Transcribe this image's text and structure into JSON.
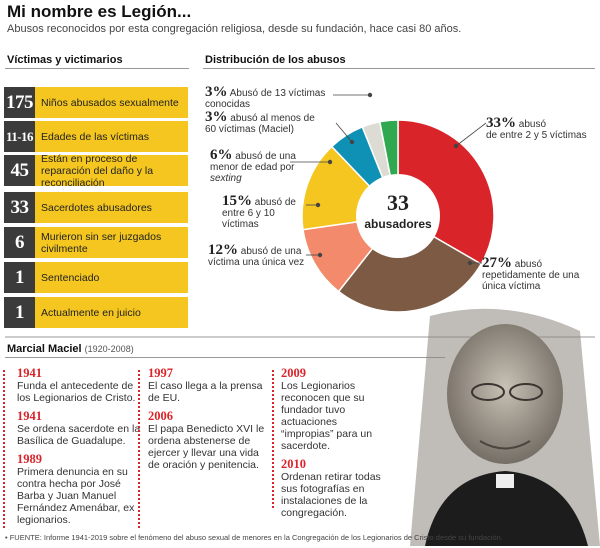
{
  "header": {
    "title": "Mi nombre es Legión...",
    "subtitle": "Abusos reconocidos por esta congregación religiosa, desde su fundación, hace casi 80 años."
  },
  "victims": {
    "title": "Víctimas y victimarios",
    "items": [
      {
        "num": "175",
        "text": "Niños abusados sexualmente"
      },
      {
        "num": "11-16",
        "text": "Edades de las víctimas"
      },
      {
        "num": "45",
        "text": "Están en proceso de reparación del daño y la reconciliación"
      },
      {
        "num": "33",
        "text": "Sacerdotes abusadores"
      },
      {
        "num": "6",
        "text": "Murieron sin ser juzgados civilmente"
      },
      {
        "num": "1",
        "text": "Sentenciado"
      },
      {
        "num": "1",
        "text": "Actualmente en juicio"
      }
    ]
  },
  "distribution": {
    "title": "Distribución de los abusos",
    "center_num": "33",
    "center_label": "abusadores",
    "labels": [
      {
        "pct": "33%",
        "text1": "abusó",
        "text2": "de entre 2 y 5 víctimas"
      },
      {
        "pct": "27%",
        "text1": "abusó",
        "text2": "repetidamente de una única víctima"
      },
      {
        "pct": "12%",
        "text1": "abusó de",
        "text2": "una víctima una única vez"
      },
      {
        "pct": "15%",
        "text1": "abusó",
        "text2": "de entre 6 y 10 víctimas"
      },
      {
        "pct": "6%",
        "text1": "abusó de",
        "text2": "una menor de edad por",
        "text3": "sexting"
      },
      {
        "pct": "3%",
        "text1": "abusó al menos de",
        "text2": "60 víctimas (Maciel)"
      },
      {
        "pct": "3%",
        "text1": "Abusó de 13 víctimas conocidas",
        "text2": ""
      }
    ]
  },
  "chart_data": {
    "type": "pie",
    "title": "Distribución de los abusos",
    "center_label": "33 abusadores",
    "series": [
      {
        "name": "abusó de entre 2 y 5 víctimas",
        "value": 33,
        "color": "#d9242a"
      },
      {
        "name": "abusó repetidamente de una única víctima",
        "value": 27,
        "color": "#7d5a43"
      },
      {
        "name": "abusó de una víctima una única vez",
        "value": 12,
        "color": "#f28a6b"
      },
      {
        "name": "abusó de entre 6 y 10 víctimas",
        "value": 15,
        "color": "#f4c61f"
      },
      {
        "name": "abusó de una menor de edad por sexting",
        "value": 6,
        "color": "#0f91b5"
      },
      {
        "name": "abusó al menos de 60 víctimas (Maciel)",
        "value": 3,
        "color": "#dcdcd4"
      },
      {
        "name": "Abusó de 13 víctimas conocidas",
        "value": 3,
        "color": "#2fa84f"
      }
    ]
  },
  "bio": {
    "name": "Marcial Maciel",
    "years": "(1920-2008)",
    "col1": [
      {
        "year": "1941",
        "text": "Funda el antecedente de los Legionarios de Cristo."
      },
      {
        "year": "1941",
        "text": "Se ordena sacerdote en la Basílica de Guadalupe."
      },
      {
        "year": "1989",
        "text": "Primera denuncia en su contra hecha por José Barba y Juan Manuel Fernández Amenábar, ex legionarios."
      }
    ],
    "col2": [
      {
        "year": "1997",
        "text": "El caso llega a la prensa de EU."
      },
      {
        "year": "2006",
        "text": "El papa Benedicto XVI le ordena abstenerse de ejercer y llevar una vida de oración y penitencia."
      }
    ],
    "col3": [
      {
        "year": "2009",
        "text": "Los Legionarios reconocen que su fundador tuvo actuaciones “impropias” para un sacerdote."
      },
      {
        "year": "2010",
        "text": "Ordenan retirar todas sus fotografías en instalaciones de la congregación."
      }
    ]
  },
  "footnote": "• FUENTE: Informe 1941-2019 sobre el fenómeno del abuso sexual de menores en la Congregación de los Legionarios de Cristo desde su fundación."
}
